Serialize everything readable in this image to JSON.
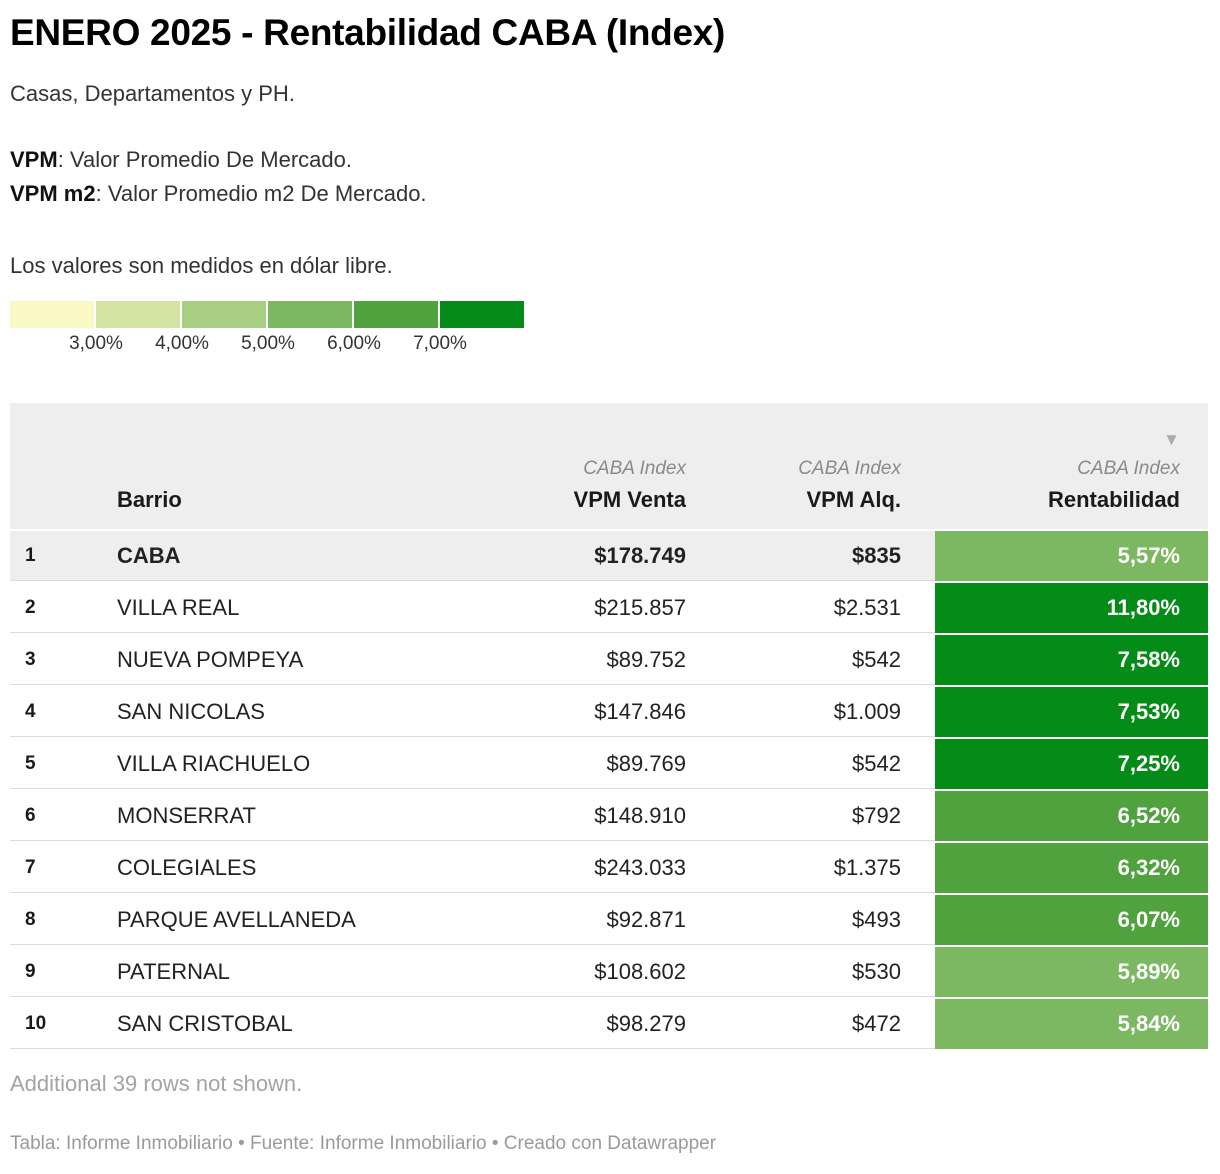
{
  "header": {
    "title": "ENERO 2025 - Rentabilidad CABA (Index)",
    "intro": "Casas, Departamentos y PH.",
    "def1_term": "VPM",
    "def1_rest": ": Valor Promedio De Mercado.",
    "def2_term": "VPM m2",
    "def2_rest": ": Valor Promedio m2 De Mercado.",
    "note": "Los valores son medidos en dólar libre."
  },
  "legend": {
    "colors": [
      "#faf9c5",
      "#d2e3a4",
      "#a7ce81",
      "#7bb861",
      "#4fa23d",
      "#058b17"
    ],
    "labels": [
      "3,00%",
      "4,00%",
      "5,00%",
      "6,00%",
      "7,00%"
    ]
  },
  "table": {
    "sub_label": "CABA Index",
    "col_barrio": "Barrio",
    "col_venta": "VPM Venta",
    "col_alq": "VPM Alq.",
    "col_rent": "Rentabilidad",
    "sort_icon": "▼",
    "rows": [
      {
        "rank": "1",
        "barrio": "CABA",
        "venta": "$178.749",
        "alq": "$835",
        "rent": "5,57%",
        "rent_color": "#7bb861",
        "highlight": true
      },
      {
        "rank": "2",
        "barrio": "VILLA REAL",
        "venta": "$215.857",
        "alq": "$2.531",
        "rent": "11,80%",
        "rent_color": "#058b17",
        "highlight": false
      },
      {
        "rank": "3",
        "barrio": "NUEVA POMPEYA",
        "venta": "$89.752",
        "alq": "$542",
        "rent": "7,58%",
        "rent_color": "#058b17",
        "highlight": false
      },
      {
        "rank": "4",
        "barrio": "SAN NICOLAS",
        "venta": "$147.846",
        "alq": "$1.009",
        "rent": "7,53%",
        "rent_color": "#058b17",
        "highlight": false
      },
      {
        "rank": "5",
        "barrio": "VILLA RIACHUELO",
        "venta": "$89.769",
        "alq": "$542",
        "rent": "7,25%",
        "rent_color": "#058b17",
        "highlight": false
      },
      {
        "rank": "6",
        "barrio": "MONSERRAT",
        "venta": "$148.910",
        "alq": "$792",
        "rent": "6,52%",
        "rent_color": "#4fa23d",
        "highlight": false
      },
      {
        "rank": "7",
        "barrio": "COLEGIALES",
        "venta": "$243.033",
        "alq": "$1.375",
        "rent": "6,32%",
        "rent_color": "#4fa23d",
        "highlight": false
      },
      {
        "rank": "8",
        "barrio": "PARQUE AVELLANEDA",
        "venta": "$92.871",
        "alq": "$493",
        "rent": "6,07%",
        "rent_color": "#4fa23d",
        "highlight": false
      },
      {
        "rank": "9",
        "barrio": "PATERNAL",
        "venta": "$108.602",
        "alq": "$530",
        "rent": "5,89%",
        "rent_color": "#7bb861",
        "highlight": false
      },
      {
        "rank": "10",
        "barrio": "SAN CRISTOBAL",
        "venta": "$98.279",
        "alq": "$472",
        "rent": "5,84%",
        "rent_color": "#7bb861",
        "highlight": false
      }
    ]
  },
  "footer": {
    "more_rows": "Additional 39 rows not shown.",
    "credit": "Tabla: Informe Inmobiliario • Fuente: Informe Inmobiliario • Creado con Datawrapper"
  },
  "chart_data": {
    "type": "table",
    "title": "ENERO 2025 - Rentabilidad CABA (Index)",
    "description": [
      "Casas, Departamentos y PH.",
      "VPM: Valor Promedio De Mercado.",
      "VPM m2: Valor Promedio m2 De Mercado.",
      "Los valores son medidos en dólar libre."
    ],
    "columns": [
      "Barrio",
      "VPM Venta (CABA Index)",
      "VPM Alq. (CABA Index)",
      "Rentabilidad (CABA Index)"
    ],
    "sorted_by": "Rentabilidad descending",
    "rows": [
      {
        "rank": 1,
        "barrio": "CABA",
        "vpm_venta": 178749,
        "vpm_alq": 835,
        "rentabilidad_pct": 5.57
      },
      {
        "rank": 2,
        "barrio": "VILLA REAL",
        "vpm_venta": 215857,
        "vpm_alq": 2531,
        "rentabilidad_pct": 11.8
      },
      {
        "rank": 3,
        "barrio": "NUEVA POMPEYA",
        "vpm_venta": 89752,
        "vpm_alq": 542,
        "rentabilidad_pct": 7.58
      },
      {
        "rank": 4,
        "barrio": "SAN NICOLAS",
        "vpm_venta": 147846,
        "vpm_alq": 1009,
        "rentabilidad_pct": 7.53
      },
      {
        "rank": 5,
        "barrio": "VILLA RIACHUELO",
        "vpm_venta": 89769,
        "vpm_alq": 542,
        "rentabilidad_pct": 7.25
      },
      {
        "rank": 6,
        "barrio": "MONSERRAT",
        "vpm_venta": 148910,
        "vpm_alq": 792,
        "rentabilidad_pct": 6.52
      },
      {
        "rank": 7,
        "barrio": "COLEGIALES",
        "vpm_venta": 243033,
        "vpm_alq": 1375,
        "rentabilidad_pct": 6.32
      },
      {
        "rank": 8,
        "barrio": "PARQUE AVELLANEDA",
        "vpm_venta": 92871,
        "vpm_alq": 493,
        "rentabilidad_pct": 6.07
      },
      {
        "rank": 9,
        "barrio": "PATERNAL",
        "vpm_venta": 108602,
        "vpm_alq": 530,
        "rentabilidad_pct": 5.89
      },
      {
        "rank": 10,
        "barrio": "SAN CRISTOBAL",
        "vpm_venta": 98279,
        "vpm_alq": 472,
        "rentabilidad_pct": 5.84
      }
    ],
    "color_scale": {
      "bin_colors": [
        "#faf9c5",
        "#d2e3a4",
        "#a7ce81",
        "#7bb861",
        "#4fa23d",
        "#058b17"
      ],
      "threshold_labels_pct": [
        3.0,
        4.0,
        5.0,
        6.0,
        7.0
      ]
    },
    "hidden_rows_note": "Additional 39 rows not shown."
  }
}
